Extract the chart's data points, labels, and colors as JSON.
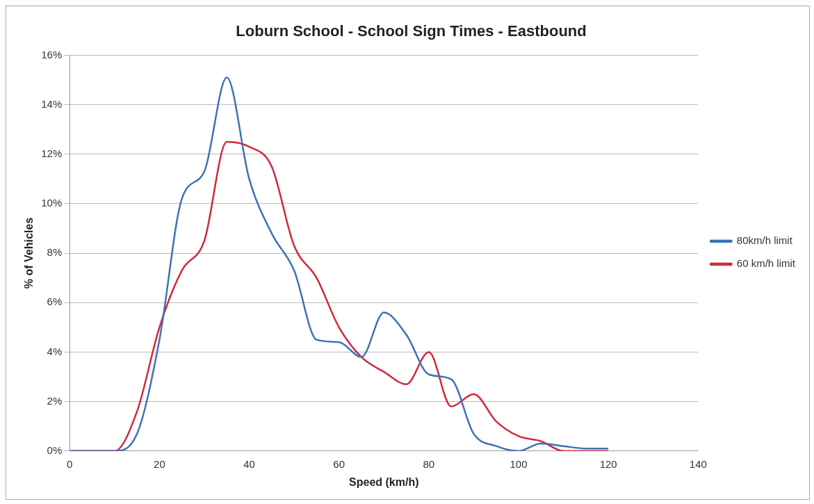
{
  "chart_data": {
    "type": "line",
    "title": "Loburn School - School Sign Times - Eastbound",
    "xlabel": "Speed (km/h)",
    "ylabel": "% of Vehicles",
    "x": [
      0,
      5,
      10,
      15,
      20,
      25,
      30,
      35,
      40,
      45,
      50,
      55,
      60,
      65,
      70,
      75,
      80,
      85,
      90,
      95,
      100,
      105,
      110,
      115,
      120
    ],
    "series": [
      {
        "name": "80km/h limit",
        "color": "#3d72b4",
        "values": [
          0,
          0,
          0,
          0.7,
          4.5,
          10.2,
          11.3,
          15.1,
          11,
          8.8,
          7.3,
          4.5,
          4.4,
          3.8,
          5.6,
          4.7,
          3.1,
          2.9,
          0.7,
          0.2,
          0,
          0.3,
          0.2,
          0.1,
          0.1
        ]
      },
      {
        "name": "60 km/h limit",
        "color": "#d2283c",
        "values": [
          0,
          0,
          0,
          1.6,
          5,
          7.3,
          8.5,
          12.5,
          12.3,
          11.5,
          8.3,
          7,
          5,
          3.8,
          3.2,
          2.7,
          4,
          1.8,
          2.3,
          1.2,
          0.6,
          0.4,
          0,
          0,
          0
        ]
      }
    ],
    "xlim": [
      0,
      140
    ],
    "xticks": [
      0,
      20,
      40,
      60,
      80,
      100,
      120,
      140
    ],
    "ylim": [
      0,
      16
    ],
    "yticks": [
      {
        "value": 0,
        "label": "0%"
      },
      {
        "value": 2,
        "label": "2%"
      },
      {
        "value": 4,
        "label": "4%"
      },
      {
        "value": 6,
        "label": "6%"
      },
      {
        "value": 8,
        "label": "8%"
      },
      {
        "value": 10,
        "label": "10%"
      },
      {
        "value": 12,
        "label": "12%"
      },
      {
        "value": 14,
        "label": "14%"
      },
      {
        "value": 16,
        "label": "16%"
      }
    ],
    "grid": "y",
    "legend": "right",
    "marker": "none",
    "line_style": "solid"
  }
}
